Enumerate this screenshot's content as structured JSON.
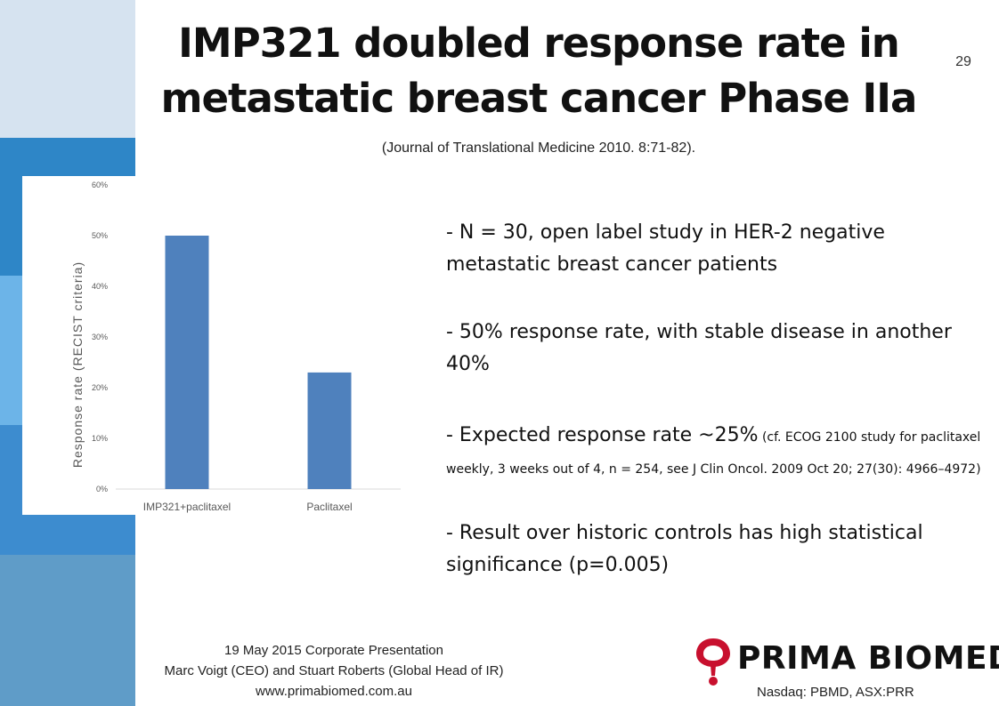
{
  "slide": {
    "title_line1": "IMP321 doubled response rate in",
    "title_line2": "metastatic breast cancer Phase IIa",
    "subtitle": "(Journal of Translational Medicine 2010. 8:71-82).",
    "page_number": "29"
  },
  "bullets": {
    "b1": "- N = 30, open label study in HER-2 negative metastatic breast cancer patients",
    "b2": "- 50% response rate, with stable disease in another 40%",
    "b3_lead": "- Expected response rate ~25%",
    "b3_detail": " (cf. ECOG 2100 study for paclitaxel weekly, 3 weeks out of 4, n = 254, see J Clin Oncol. 2009 Oct 20; 27(30): 4966–4972)",
    "b4": "- Result over historic controls has high statistical significance (p=0.005)"
  },
  "footer": {
    "line1": "19 May 2015 Corporate Presentation",
    "line2": "Marc Voigt (CEO) and Stuart Roberts (Global Head of IR)",
    "line3": "www.primabiomed.com.au"
  },
  "brand": {
    "name": "PRIMA BIOMED",
    "exchange": "Nasdaq: PBMD, ASX:PRR",
    "logo_red": "#c8102e"
  },
  "colors": {
    "bar": "#4f81bd",
    "sidebar": [
      "#d6e3f0",
      "#2e86c7",
      "#4a9ad6",
      "#6cb4e8",
      "#3d8ccf",
      "#5f9cc8"
    ]
  },
  "chart_data": {
    "type": "bar",
    "categories": [
      "IMP321+paclitaxel",
      "Paclitaxel"
    ],
    "values": [
      0.5,
      0.23
    ],
    "ylabel": "Response rate (RECIST criteria)",
    "ylim": [
      0,
      0.6
    ],
    "yticks": [
      "0%",
      "10%",
      "20%",
      "30%",
      "40%",
      "50%",
      "60%"
    ],
    "grid": false,
    "legend": "none"
  }
}
